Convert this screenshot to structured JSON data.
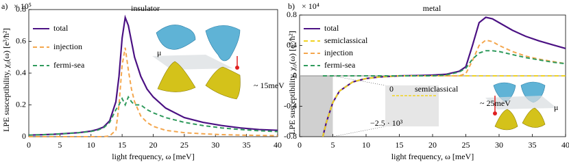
{
  "chart_data": [
    {
      "type": "line",
      "panel_label": "a)",
      "title": "insulator",
      "y_multiplier": "× 10⁵",
      "ylabel": "LPE susceptibility, χ₀(ω) [e³/ħ²]",
      "xlabel": "light frequency, ω [meV]",
      "x": [
        0,
        2,
        4,
        6,
        8,
        10,
        11,
        12,
        13,
        14,
        14.5,
        15,
        15.5,
        16,
        16.5,
        17,
        18,
        19,
        20,
        22,
        25,
        28,
        31,
        34,
        37,
        40
      ],
      "series": [
        {
          "name": "total",
          "color": "#4b1183",
          "dashed": false,
          "values": [
            0.01,
            0.012,
            0.015,
            0.02,
            0.025,
            0.035,
            0.045,
            0.06,
            0.1,
            0.22,
            0.38,
            0.62,
            0.75,
            0.7,
            0.6,
            0.5,
            0.38,
            0.3,
            0.25,
            0.18,
            0.12,
            0.09,
            0.07,
            0.055,
            0.045,
            0.04
          ]
        },
        {
          "name": "injection",
          "color": "#f4a64c",
          "dashed": true,
          "values": [
            0,
            0,
            0,
            0,
            0,
            0,
            0,
            0,
            0.005,
            0.04,
            0.2,
            0.45,
            0.56,
            0.42,
            0.3,
            0.22,
            0.13,
            0.09,
            0.065,
            0.04,
            0.025,
            0.018,
            0.013,
            0.01,
            0.008,
            0.006
          ]
        },
        {
          "name": "fermi-sea",
          "color": "#2f9a5c",
          "dashed": true,
          "values": [
            0.01,
            0.012,
            0.015,
            0.02,
            0.025,
            0.033,
            0.04,
            0.055,
            0.09,
            0.17,
            0.2,
            0.24,
            0.2,
            0.25,
            0.22,
            0.2,
            0.2,
            0.17,
            0.15,
            0.12,
            0.09,
            0.07,
            0.055,
            0.045,
            0.037,
            0.032
          ]
        }
      ],
      "xlim": [
        0,
        40
      ],
      "xticks": [
        0,
        5,
        10,
        15,
        20,
        25,
        30,
        35,
        40
      ],
      "ylim": [
        0,
        0.8
      ],
      "yticks": [
        0,
        0.2,
        0.4,
        0.6,
        0.8
      ],
      "annotations": [
        "μ",
        "~ 15meV"
      ]
    },
    {
      "type": "line",
      "panel_label": "b)",
      "title": "metal",
      "y_multiplier": "× 10⁴",
      "ylabel": "LPE susceptibility, χ₀(ω) [e³/ħ²]",
      "xlabel": "light frequency, ω [meV]",
      "x": [
        3.5,
        4,
        5,
        6,
        8,
        10,
        12,
        15,
        18,
        20,
        22,
        24,
        25,
        26,
        27,
        28,
        29,
        30,
        32,
        34,
        36,
        38,
        40
      ],
      "series": [
        {
          "name": "total",
          "color": "#4b1183",
          "dashed": false,
          "values": [
            -0.8,
            -0.62,
            -0.35,
            -0.2,
            -0.08,
            -0.035,
            -0.015,
            0,
            0.005,
            0.01,
            0.02,
            0.06,
            0.12,
            0.4,
            0.7,
            0.77,
            0.75,
            0.7,
            0.6,
            0.52,
            0.46,
            0.41,
            0.36
          ]
        },
        {
          "name": "semiclassical",
          "color": "#f0d21e",
          "dashed": true,
          "values": [
            -0.8,
            -0.62,
            -0.35,
            -0.2,
            -0.08,
            -0.035,
            -0.015,
            0,
            0,
            0,
            0,
            0,
            0,
            0,
            0,
            0,
            0,
            0,
            0,
            0,
            0,
            0,
            0
          ]
        },
        {
          "name": "injection",
          "color": "#f4a64c",
          "dashed": true,
          "values": [
            0,
            0,
            0,
            0,
            0,
            0,
            0,
            0,
            0,
            0,
            0,
            0,
            0.03,
            0.2,
            0.4,
            0.47,
            0.45,
            0.4,
            0.32,
            0.26,
            0.22,
            0.19,
            0.16
          ]
        },
        {
          "name": "fermi-sea",
          "color": "#2f9a5c",
          "dashed": true,
          "values": [
            0,
            0,
            0,
            0,
            0,
            0,
            0,
            0,
            0,
            0,
            0.01,
            0.05,
            0.1,
            0.22,
            0.3,
            0.33,
            0.33,
            0.32,
            0.28,
            0.24,
            0.21,
            0.18,
            0.16
          ]
        }
      ],
      "xlim": [
        0,
        40
      ],
      "xticks": [
        0,
        5,
        10,
        15,
        20,
        25,
        30,
        35,
        40
      ],
      "ylim": [
        -0.8,
        0.8
      ],
      "yticks": [
        -0.8,
        -0.4,
        0,
        0.4,
        0.8
      ],
      "annotations": [
        "μ",
        "~ 25meV",
        "semiclassical",
        "0",
        "−2.5 · 10³"
      ]
    }
  ]
}
